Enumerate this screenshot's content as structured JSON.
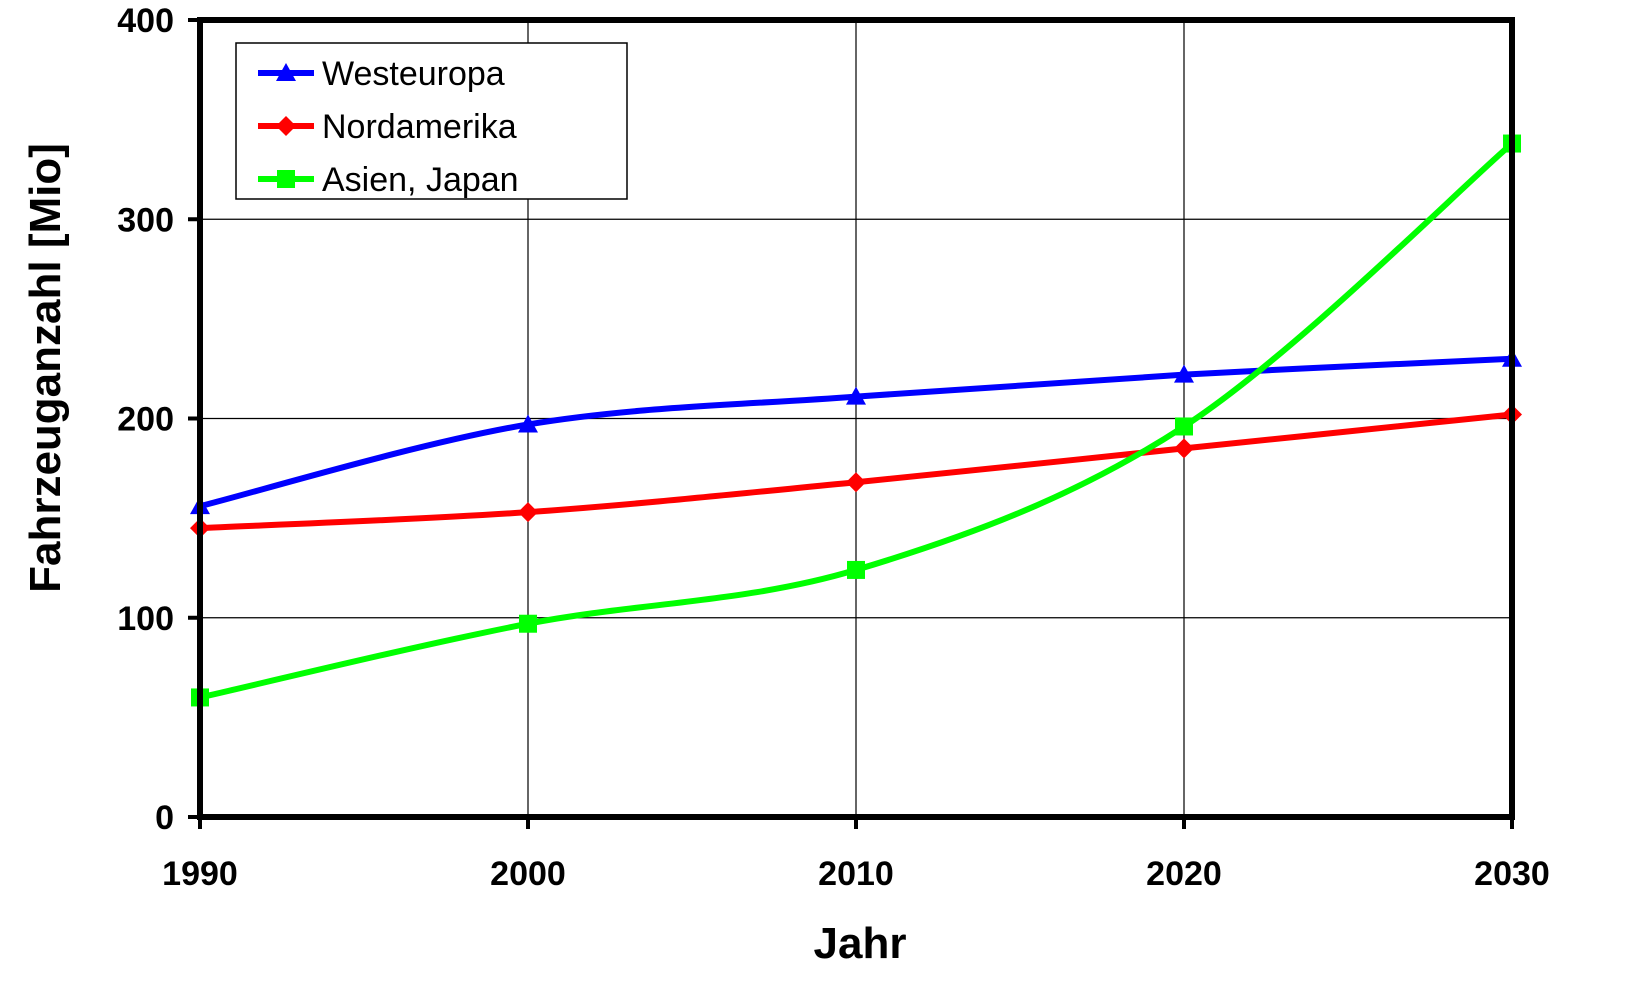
{
  "chart_data": {
    "type": "line",
    "title": "",
    "xlabel": "Jahr",
    "ylabel": "Fahrzeuganzahl [Mio]",
    "x": [
      1990,
      2000,
      2010,
      2020,
      2030
    ],
    "x_ticks": [
      "1990",
      "2000",
      "2010",
      "2020",
      "2030"
    ],
    "y_ticks": [
      "0",
      "100",
      "200",
      "300",
      "400"
    ],
    "xlim": [
      1990,
      2030
    ],
    "ylim": [
      0,
      400
    ],
    "grid": true,
    "legend_position": "top-left",
    "series": [
      {
        "name": "Westeuropa",
        "values": [
          156,
          197,
          211,
          222,
          230
        ],
        "color": "#0000ff",
        "marker": "triangle"
      },
      {
        "name": "Nordamerika",
        "values": [
          145,
          153,
          168,
          185,
          202
        ],
        "color": "#ff0000",
        "marker": "diamond"
      },
      {
        "name": "Asien, Japan",
        "values": [
          60,
          97,
          124,
          196,
          338
        ],
        "color": "#00ff00",
        "marker": "square"
      }
    ]
  }
}
